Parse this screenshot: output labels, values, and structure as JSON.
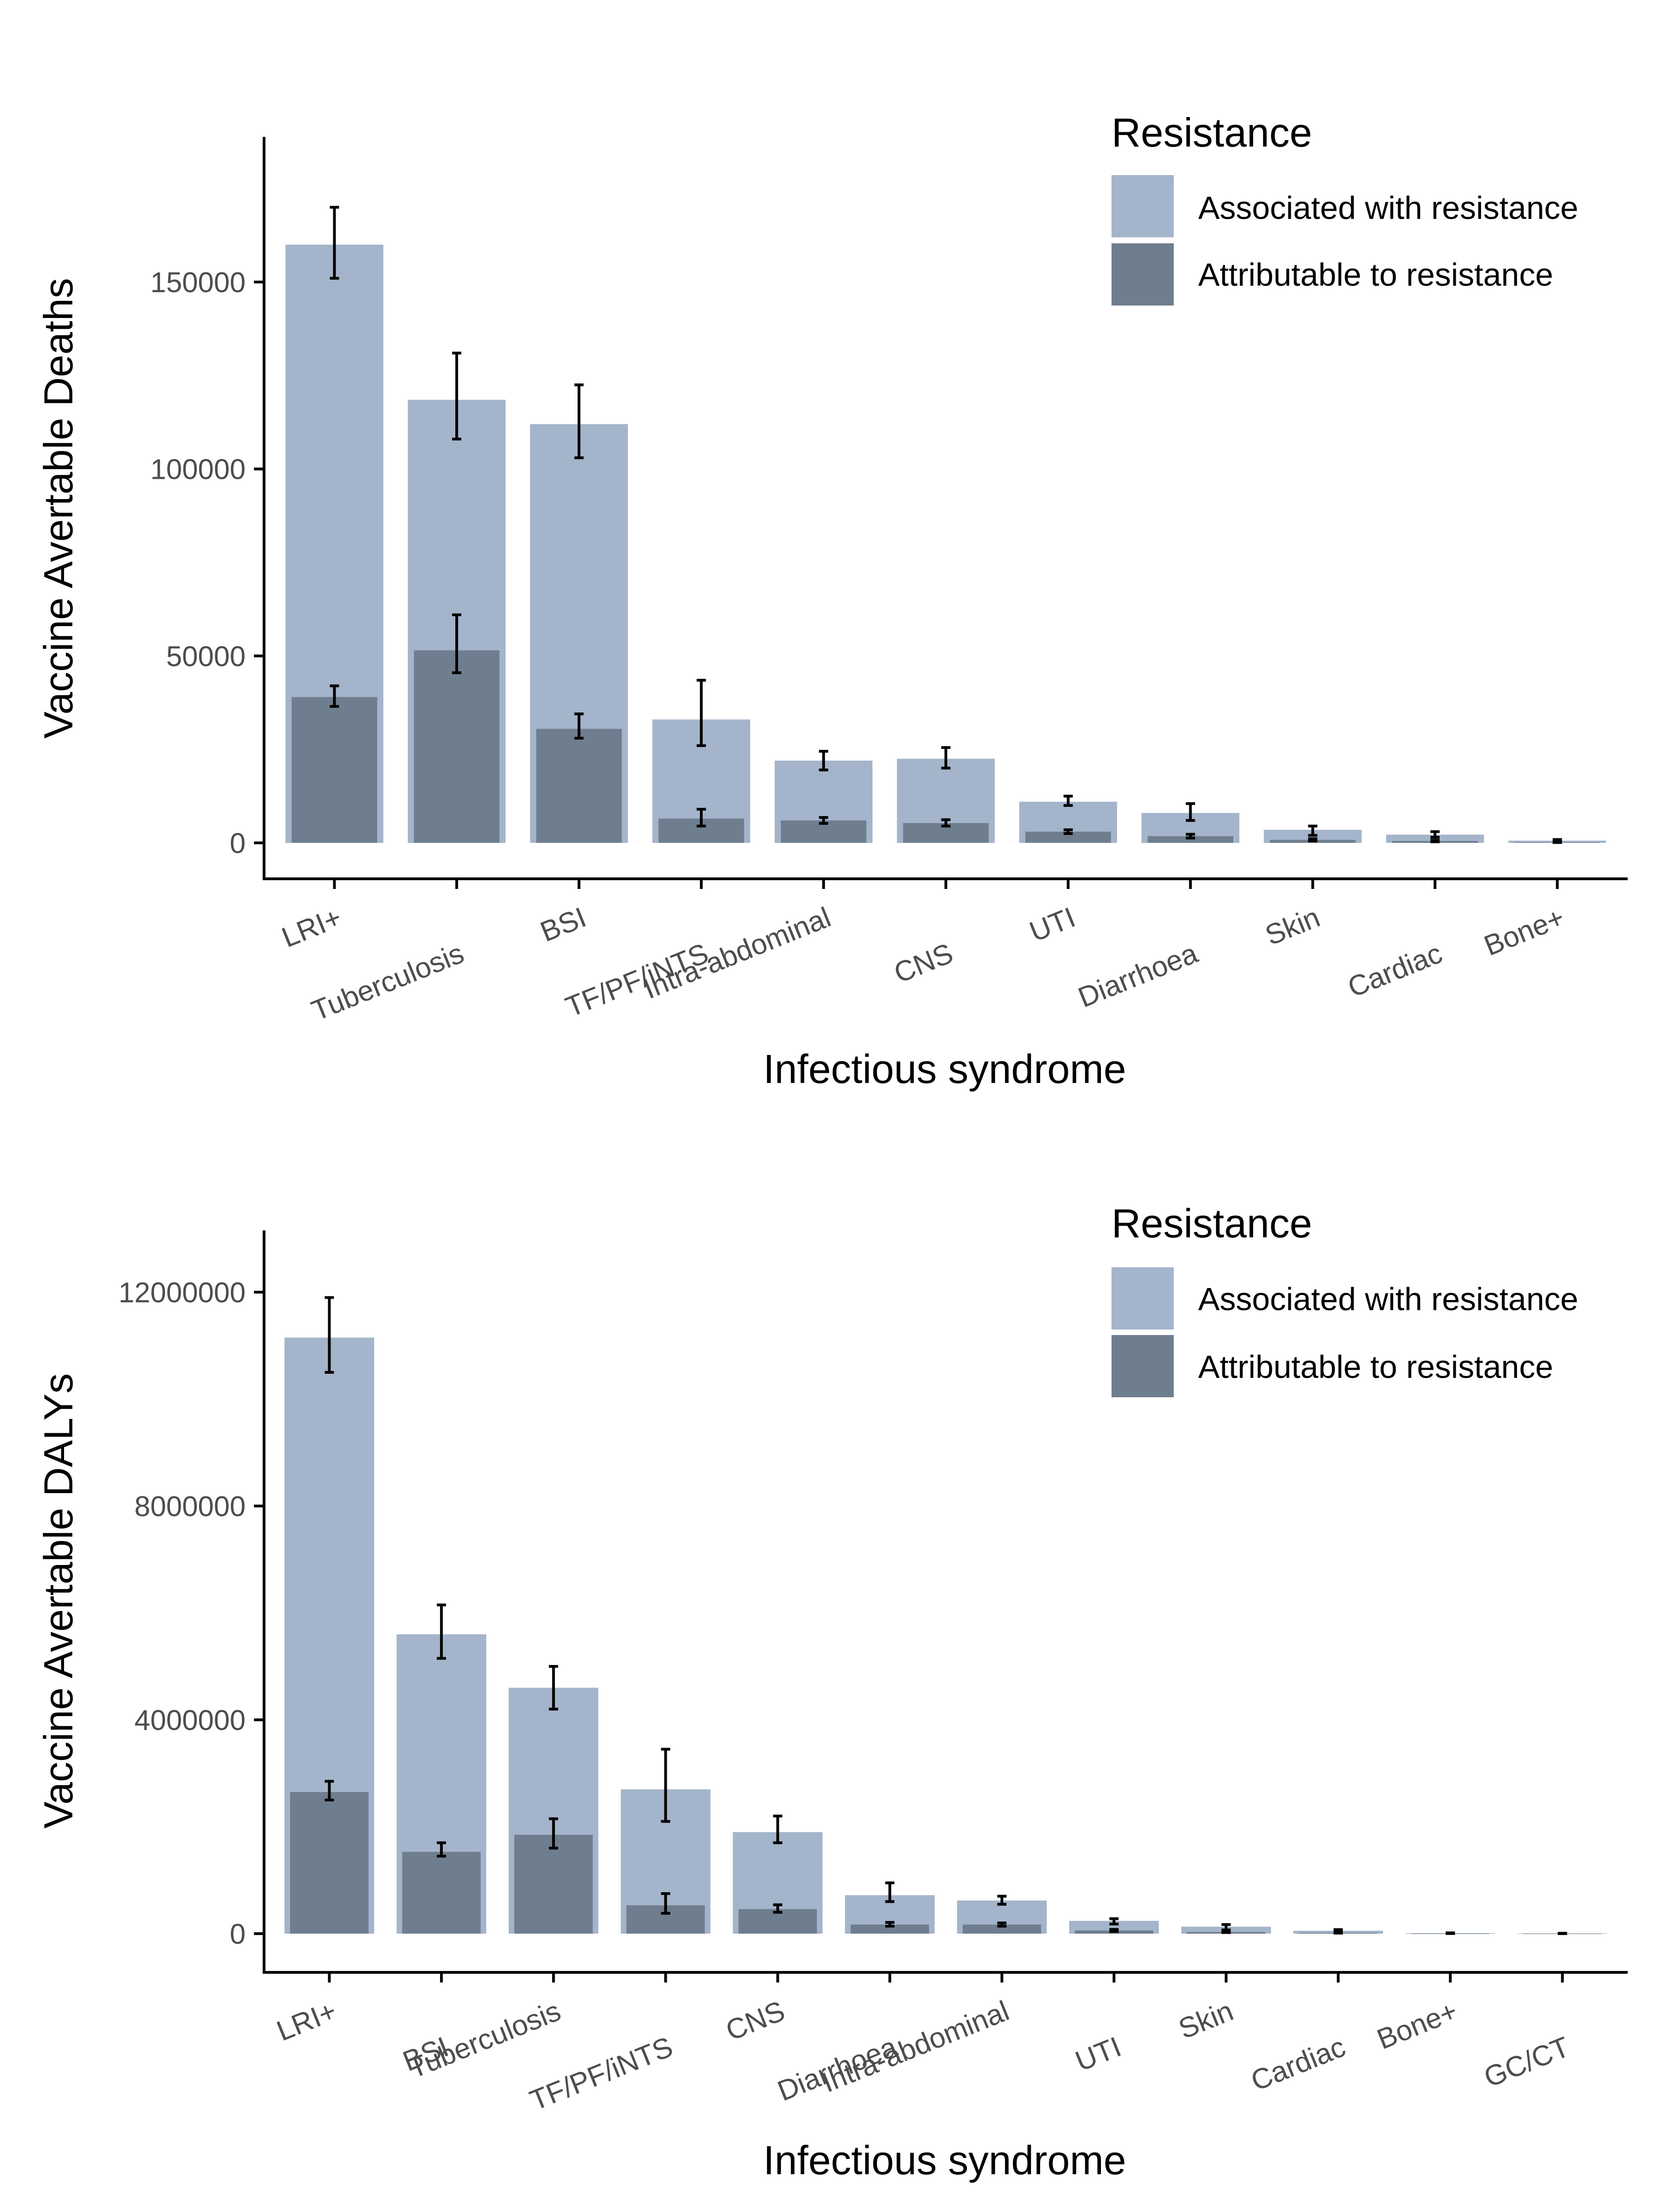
{
  "colors": {
    "associated": "#a4b4cb",
    "attributable": "#6f7e8f",
    "axis": "#000000",
    "error_bar": "#000000"
  },
  "chart_data": [
    {
      "type": "bar",
      "ylabel": "Vaccine Avertable Deaths",
      "xlabel": "Infectious syndrome",
      "ylim": [
        -9000,
        190000
      ],
      "yticks": [
        0,
        50000,
        100000,
        150000
      ],
      "ytick_labels": [
        "0",
        "50000",
        "100000",
        "150000"
      ],
      "grid": false,
      "legend": {
        "title": "Resistance",
        "position": "top-right",
        "entries": [
          "Associated with resistance",
          "Attributable to resistance"
        ]
      },
      "categories": [
        "LRI+",
        "Tuberculosis",
        "BSI",
        "TF/PF/iNTS",
        "Intra-abdominal",
        "CNS",
        "UTI",
        "Diarrhoea",
        "Skin",
        "Cardiac",
        "Bone+"
      ],
      "series": [
        {
          "name": "Associated with resistance",
          "values": [
            160000,
            118500,
            112000,
            33000,
            22000,
            22500,
            11000,
            8000,
            3500,
            2200,
            600
          ],
          "error_low": [
            151000,
            108000,
            103000,
            26000,
            19500,
            20000,
            10000,
            6000,
            2000,
            1500,
            300
          ],
          "error_high": [
            170000,
            131000,
            122500,
            43500,
            24500,
            25500,
            12500,
            10500,
            4500,
            3000,
            900
          ]
        },
        {
          "name": "Attributable to resistance",
          "values": [
            39000,
            51500,
            30500,
            6500,
            6000,
            5300,
            3000,
            1800,
            800,
            500,
            150
          ],
          "error_low": [
            36500,
            45500,
            28000,
            4500,
            5200,
            4500,
            2500,
            1300,
            500,
            300,
            100
          ],
          "error_high": [
            42000,
            61000,
            34500,
            9000,
            6800,
            6200,
            3500,
            2300,
            1100,
            700,
            200
          ]
        }
      ]
    },
    {
      "type": "bar",
      "ylabel": "Vaccine Avertable DALYs",
      "xlabel": "Infectious syndrome",
      "ylim": [
        -600000,
        13000000
      ],
      "yticks": [
        0,
        4000000,
        8000000,
        12000000
      ],
      "ytick_labels": [
        "0",
        "4000000",
        "8000000",
        "12000000"
      ],
      "grid": false,
      "legend": {
        "title": "Resistance",
        "position": "top-right",
        "entries": [
          "Associated with resistance",
          "Attributable to resistance"
        ]
      },
      "categories": [
        "LRI+",
        "BSI",
        "Tuberculosis",
        "TF/PF/iNTS",
        "CNS",
        "Diarrhoea",
        "Intra-abdominal",
        "UTI",
        "Skin",
        "Cardiac",
        "Bone+",
        "GC/CT"
      ],
      "series": [
        {
          "name": "Associated with resistance",
          "values": [
            11150000,
            5600000,
            4600000,
            2700000,
            1900000,
            720000,
            620000,
            240000,
            130000,
            55000,
            10000,
            5000
          ],
          "error_low": [
            10500000,
            5150000,
            4200000,
            2100000,
            1700000,
            600000,
            550000,
            180000,
            70000,
            30000,
            5000,
            2000
          ],
          "error_high": [
            11900000,
            6150000,
            5000000,
            3450000,
            2200000,
            950000,
            700000,
            280000,
            170000,
            75000,
            15000,
            8000
          ]
        },
        {
          "name": "Attributable to resistance",
          "values": [
            2650000,
            1530000,
            1850000,
            530000,
            460000,
            170000,
            170000,
            60000,
            30000,
            15000,
            3000,
            2000
          ],
          "error_low": [
            2500000,
            1450000,
            1600000,
            380000,
            400000,
            140000,
            140000,
            40000,
            20000,
            10000,
            2000,
            1000
          ],
          "error_high": [
            2850000,
            1700000,
            2150000,
            750000,
            540000,
            210000,
            200000,
            80000,
            40000,
            20000,
            4000,
            3000
          ]
        }
      ]
    }
  ]
}
